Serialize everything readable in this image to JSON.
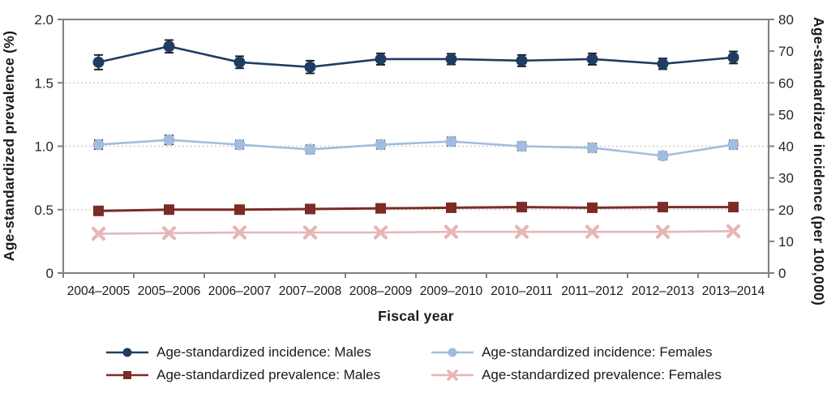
{
  "chart_data": {
    "type": "line",
    "title": "",
    "xlabel": "Fiscal year",
    "ylabel_left": "Age-standardized prevalence (%)",
    "ylabel_right": "Age-standardized incidence (per 100,000)",
    "categories": [
      "2004–2005",
      "2005–2006",
      "2006–2007",
      "2007–2008",
      "2008–2009",
      "2009–2010",
      "2010–2011",
      "2011–2012",
      "2012–2013",
      "2013–2014"
    ],
    "left_axis": {
      "min": 0,
      "max": 2.0,
      "tick_labels": [
        "2.0",
        "1.5",
        "1.0",
        "0.5",
        "0"
      ],
      "grid_at": [
        1.5,
        1.0,
        0.5
      ]
    },
    "right_axis": {
      "min": 0,
      "max": 80,
      "tick_labels": [
        "80",
        "70",
        "60",
        "50",
        "40",
        "30",
        "20",
        "10",
        "0"
      ]
    },
    "grid_style": "dotted-horizontal",
    "legend_position": "bottom",
    "error_bar_color": "#1a1a1a",
    "axis_line_color": "#808080",
    "grid_line_color": "#c9c9c9",
    "series": [
      {
        "name": "Age-standardized incidence: Males",
        "axis": "right",
        "marker": "circle",
        "color": "#1f3d63",
        "values": [
          66.5,
          71.5,
          66.5,
          65.0,
          67.5,
          67.5,
          67.0,
          67.5,
          66.0,
          68.0
        ],
        "errors": [
          2.3,
          2.0,
          1.9,
          2.0,
          1.8,
          1.7,
          1.8,
          1.8,
          1.7,
          1.9
        ]
      },
      {
        "name": "Age-standardized incidence: Females",
        "axis": "right",
        "marker": "circle",
        "color": "#a2bcdf",
        "values": [
          40.5,
          42.0,
          40.5,
          39.0,
          40.5,
          41.5,
          40.0,
          39.5,
          37.0,
          40.5
        ],
        "errors": [
          1.4,
          1.4,
          1.3,
          1.3,
          1.3,
          1.3,
          1.3,
          1.3,
          1.2,
          1.3
        ]
      },
      {
        "name": "Age-standardized prevalence: Males",
        "axis": "left",
        "marker": "square",
        "color": "#7b2c27",
        "values": [
          0.49,
          0.5,
          0.5,
          0.505,
          0.51,
          0.515,
          0.52,
          0.515,
          0.52,
          0.52
        ]
      },
      {
        "name": "Age-standardized prevalence: Females",
        "axis": "left",
        "marker": "x",
        "color": "#e7b6b7",
        "values": [
          0.31,
          0.315,
          0.32,
          0.32,
          0.32,
          0.325,
          0.325,
          0.325,
          0.325,
          0.33
        ]
      }
    ]
  }
}
